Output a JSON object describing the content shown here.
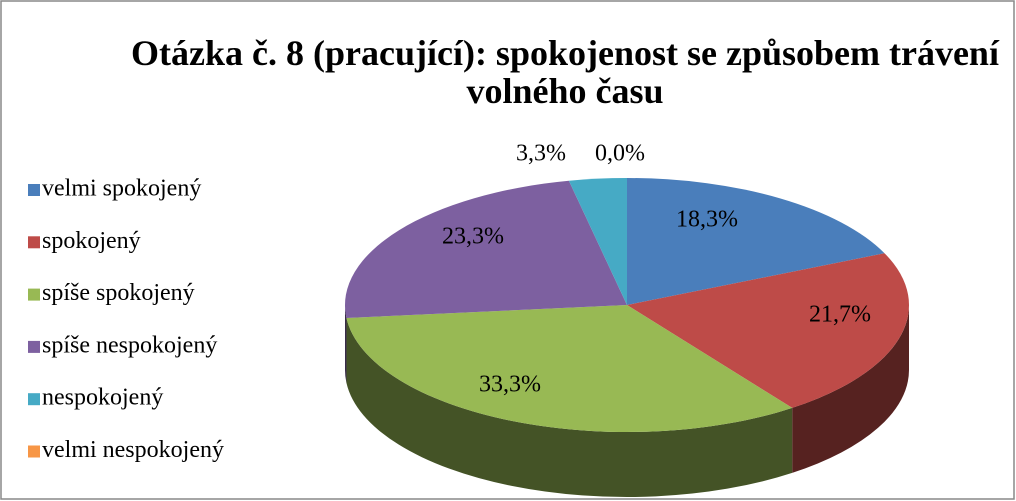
{
  "chart_data": {
    "type": "pie3d",
    "title": "Otázka č. 8 (pracující): spokojenost se způsobem trávení volného času",
    "categories": [
      "velmi spokojený",
      "spokojený",
      "spíše spokojený",
      "spíše nespokojený",
      "nespokojený",
      "velmi nespokojený"
    ],
    "values": [
      18.3,
      21.7,
      33.3,
      23.3,
      3.3,
      0.0
    ],
    "value_labels": [
      "18,3%",
      "21,7%",
      "33,3%",
      "23,3%",
      "3,3%",
      "0,0%"
    ],
    "colors": [
      "#4a7ebb",
      "#be4b48",
      "#98b954",
      "#7d60a0",
      "#46aac5",
      "#f79646"
    ],
    "legend": "left"
  }
}
